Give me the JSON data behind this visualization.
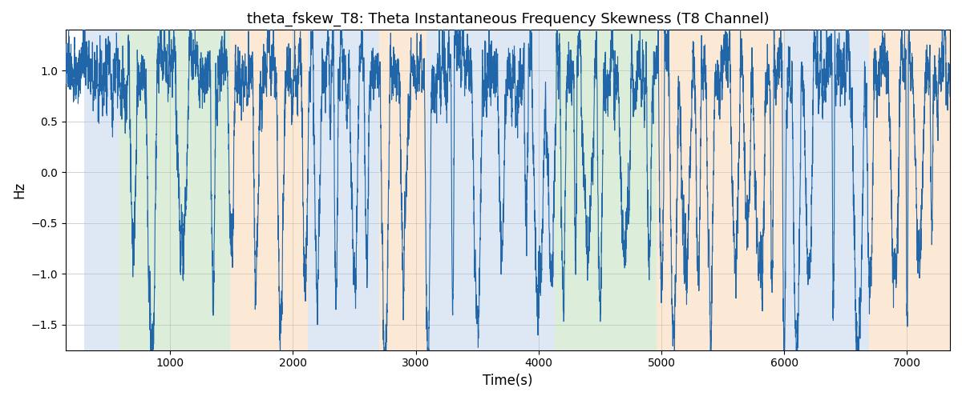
{
  "title": "theta_fskew_T8: Theta Instantaneous Frequency Skewness (T8 Channel)",
  "xlabel": "Time(s)",
  "ylabel": "Hz",
  "xlim": [
    150,
    7350
  ],
  "ylim": [
    -1.75,
    1.4
  ],
  "line_color": "#2166a8",
  "line_width": 0.8,
  "background_regions": [
    {
      "start": 300,
      "end": 590,
      "color": "#adc6e5",
      "alpha": 0.4
    },
    {
      "start": 590,
      "end": 1490,
      "color": "#a8d5a2",
      "alpha": 0.4
    },
    {
      "start": 1490,
      "end": 2120,
      "color": "#f5c899",
      "alpha": 0.4
    },
    {
      "start": 2120,
      "end": 2700,
      "color": "#adc6e5",
      "alpha": 0.4
    },
    {
      "start": 2700,
      "end": 3090,
      "color": "#f5c899",
      "alpha": 0.4
    },
    {
      "start": 3090,
      "end": 4130,
      "color": "#adc6e5",
      "alpha": 0.4
    },
    {
      "start": 4130,
      "end": 4960,
      "color": "#a8d5a2",
      "alpha": 0.4
    },
    {
      "start": 4960,
      "end": 5990,
      "color": "#f5c899",
      "alpha": 0.4
    },
    {
      "start": 5990,
      "end": 6690,
      "color": "#adc6e5",
      "alpha": 0.4
    },
    {
      "start": 6690,
      "end": 7350,
      "color": "#f5c899",
      "alpha": 0.4
    }
  ],
  "yticks": [
    -1.5,
    -1.0,
    -0.5,
    0.0,
    0.5,
    1.0
  ],
  "xticks": [
    1000,
    2000,
    3000,
    4000,
    5000,
    6000,
    7000
  ],
  "time_start": 150,
  "time_end": 7350,
  "n_points": 7200
}
